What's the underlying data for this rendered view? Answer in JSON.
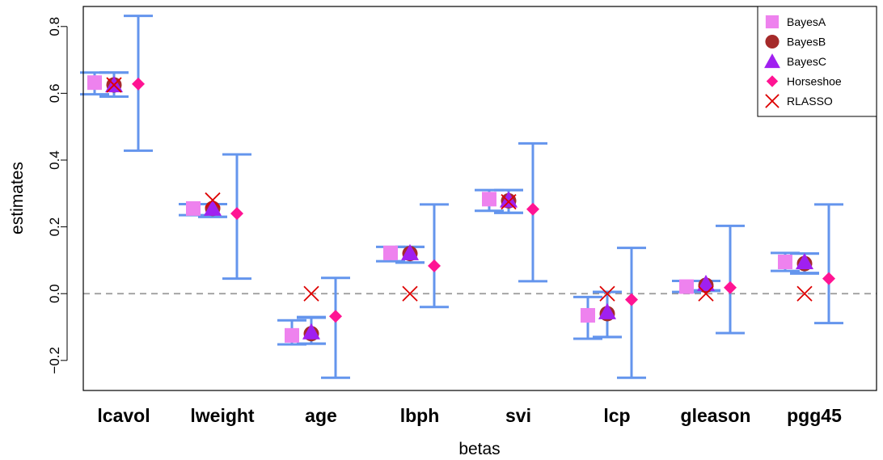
{
  "chart_data": {
    "type": "scatter",
    "xlabel": "betas",
    "ylabel": "estimates",
    "ylim": [
      -0.29,
      0.86
    ],
    "categories": [
      "lcavol",
      "lweight",
      "age",
      "lbph",
      "svi",
      "lcp",
      "gleason",
      "pgg45"
    ],
    "yticks": [
      -0.2,
      0.0,
      0.2,
      0.4,
      0.6,
      0.8
    ],
    "ytick_labels": [
      "−0.2",
      "0.0",
      "0.2",
      "0.4",
      "0.6",
      "0.8"
    ],
    "reference_line": {
      "y": 0.0,
      "style": "dashed",
      "color": "#999999"
    },
    "grid": false,
    "legend_position": "top-right",
    "errorbar_color": "#6495ED",
    "series": [
      {
        "name": "BayesA",
        "marker": "square",
        "color": "#EE82EE",
        "values": [
          0.632,
          0.255,
          -0.125,
          0.122,
          0.283,
          -0.065,
          0.021,
          0.095
        ],
        "lower": [
          0.597,
          0.235,
          -0.152,
          0.097,
          0.248,
          -0.135,
          0.005,
          0.068
        ],
        "upper": [
          0.662,
          0.268,
          -0.08,
          0.14,
          0.31,
          -0.01,
          0.038,
          0.122
        ]
      },
      {
        "name": "BayesB",
        "marker": "circle",
        "color": "#A52A2A",
        "values": [
          0.625,
          0.255,
          -0.12,
          0.12,
          0.278,
          -0.06,
          0.025,
          0.09
        ],
        "lower": [
          0.59,
          0.23,
          -0.15,
          0.093,
          0.242,
          -0.13,
          0.008,
          0.062
        ],
        "upper": [
          0.662,
          0.268,
          -0.072,
          0.14,
          0.31,
          0.005,
          0.038,
          0.12
        ]
      },
      {
        "name": "BayesC",
        "marker": "triangle",
        "color": "#A020F0",
        "values": [
          0.625,
          0.255,
          -0.115,
          0.122,
          0.28,
          -0.055,
          0.03,
          0.095
        ],
        "lower": [
          0.59,
          0.23,
          -0.15,
          0.093,
          0.242,
          -0.13,
          0.01,
          0.06
        ],
        "upper": [
          0.662,
          0.268,
          -0.07,
          0.14,
          0.31,
          0.005,
          0.038,
          0.12
        ]
      },
      {
        "name": "Horseshoe",
        "marker": "diamond",
        "color": "#FF1493",
        "values": [
          0.628,
          0.24,
          -0.068,
          0.083,
          0.253,
          -0.018,
          0.018,
          0.045
        ],
        "lower": [
          0.428,
          0.045,
          -0.252,
          -0.04,
          0.037,
          -0.252,
          -0.118,
          -0.088
        ],
        "upper": [
          0.832,
          0.417,
          0.047,
          0.267,
          0.45,
          0.137,
          0.203,
          0.267
        ]
      },
      {
        "name": "RLASSO",
        "marker": "cross",
        "color": "#DD0000",
        "values": [
          0.625,
          0.28,
          0.0,
          0.0,
          0.275,
          0.0,
          0.0,
          0.0
        ]
      }
    ]
  }
}
